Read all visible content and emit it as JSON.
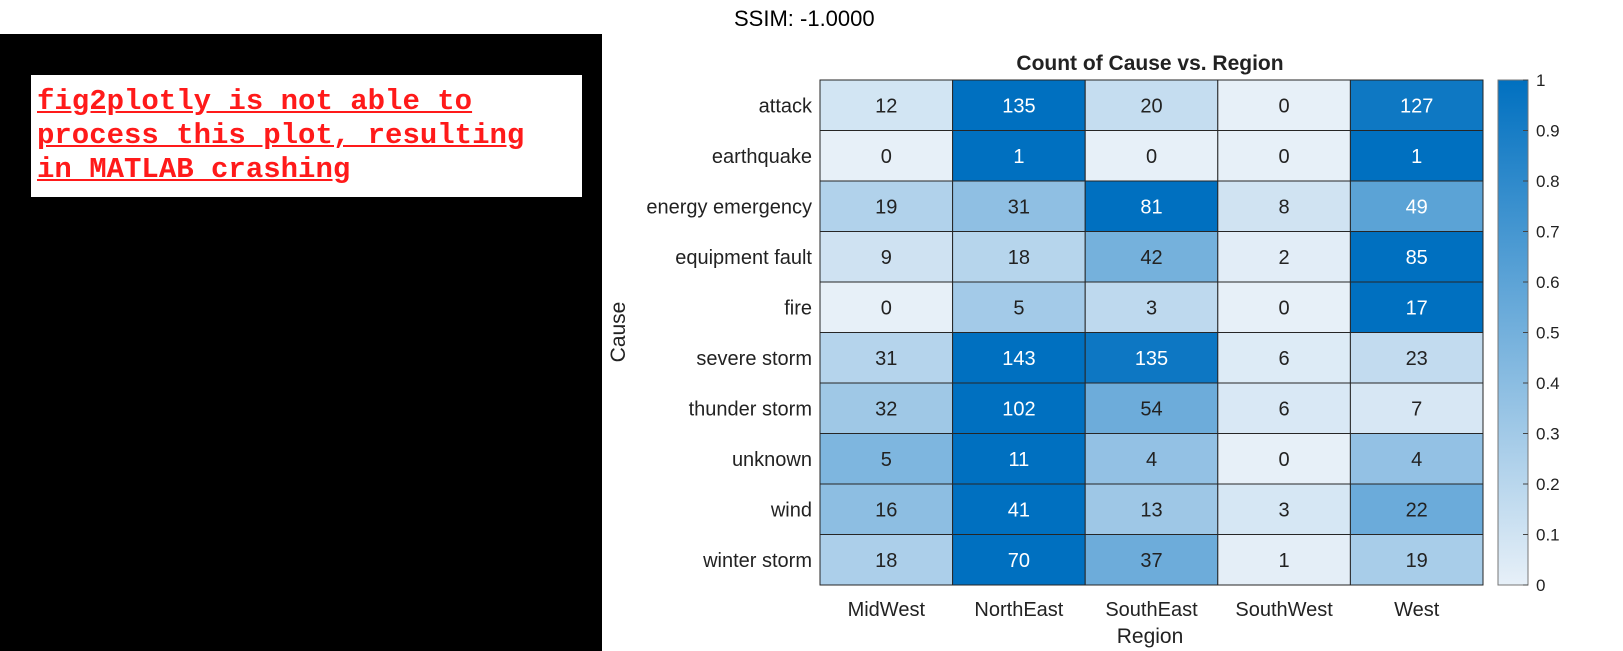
{
  "header": {
    "ssim_text": "SSIM: -1.0000"
  },
  "error_panel": {
    "message": "fig2plotly is not able to\nprocess this plot, resulting\nin MATLAB crashing"
  },
  "chart_data": {
    "type": "heatmap",
    "title": "Count of Cause vs. Region",
    "xlabel": "Region",
    "ylabel": "Cause",
    "x_categories": [
      "MidWest",
      "NorthEast",
      "SouthEast",
      "SouthWest",
      "West"
    ],
    "y_categories": [
      "attack",
      "earthquake",
      "energy emergency",
      "equipment fault",
      "fire",
      "severe storm",
      "thunder storm",
      "unknown",
      "wind",
      "winter storm"
    ],
    "values": [
      [
        12,
        135,
        20,
        0,
        127
      ],
      [
        0,
        1,
        0,
        0,
        1
      ],
      [
        19,
        31,
        81,
        8,
        49
      ],
      [
        9,
        18,
        42,
        2,
        85
      ],
      [
        0,
        5,
        3,
        0,
        17
      ],
      [
        31,
        143,
        135,
        6,
        23
      ],
      [
        32,
        102,
        54,
        6,
        7
      ],
      [
        5,
        11,
        4,
        0,
        4
      ],
      [
        16,
        41,
        13,
        3,
        22
      ],
      [
        18,
        70,
        37,
        1,
        19
      ]
    ],
    "color_normalization": "row",
    "colorbar": {
      "range": [
        0,
        1
      ],
      "ticks": [
        "0",
        "0.1",
        "0.2",
        "0.3",
        "0.4",
        "0.5",
        "0.6",
        "0.7",
        "0.8",
        "0.9",
        "1"
      ],
      "color_low": "#e7f0f8",
      "color_high": "#0070c0"
    }
  }
}
